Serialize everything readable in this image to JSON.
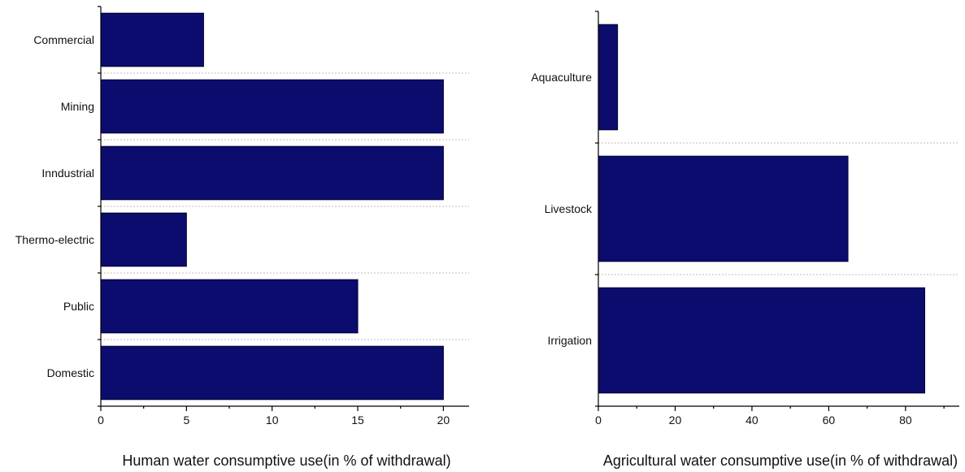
{
  "chart_data": [
    {
      "type": "bar",
      "orientation": "horizontal",
      "categories": [
        "Commercial",
        "Mining",
        "Inndustrial",
        "Thermo-electric",
        "Public",
        "Domestic"
      ],
      "values": [
        6,
        20,
        20,
        5,
        15,
        20
      ],
      "xlabel": "Human water consumptive use(in % of withdrawal)",
      "ylabel": "",
      "xlim": [
        0,
        21.5
      ],
      "xticks": [
        0,
        5,
        10,
        15,
        20
      ],
      "grid": "dotted horizontal separators between categories",
      "bar_color": "#0c0c6e"
    },
    {
      "type": "bar",
      "orientation": "horizontal",
      "categories": [
        "Aquaculture",
        "Livestock",
        "Irrigation"
      ],
      "values": [
        5,
        65,
        85
      ],
      "xlabel": "Agricultural water consumptive use(in % of withdrawal)",
      "ylabel": "",
      "xlim": [
        0,
        94
      ],
      "xticks": [
        0,
        20,
        40,
        60,
        80
      ],
      "grid": "dotted horizontal separators between categories",
      "bar_color": "#0c0c6e"
    }
  ]
}
